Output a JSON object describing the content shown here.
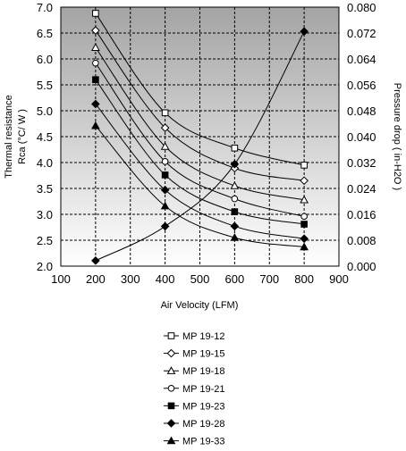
{
  "chart_data": {
    "type": "line",
    "x_axis": {
      "label": "Air Velocity (LFM)",
      "range": [
        100,
        900
      ],
      "ticks": [
        "100",
        "200",
        "300",
        "400",
        "500",
        "600",
        "700",
        "800",
        "900"
      ]
    },
    "y_axis_left": {
      "label_line1": "Thermal resistance",
      "label_line2": "Rca (°C/ W )",
      "range": [
        2.0,
        7.0
      ],
      "ticks": [
        "2.0",
        "2.5",
        "3.0",
        "3.5",
        "4.0",
        "4.5",
        "5.0",
        "5.5",
        "6.0",
        "6.5",
        "7.0"
      ]
    },
    "y_axis_right": {
      "label": "Pressure drop  ( in-H2O )",
      "range": [
        0.0,
        0.08
      ],
      "ticks": [
        "0.000",
        "0.008",
        "0.016",
        "0.024",
        "0.032",
        "0.040",
        "0.048",
        "0.056",
        "0.064",
        "0.072",
        "0.080"
      ]
    },
    "grid": true,
    "background": "gradient gray",
    "legend_position": "bottom",
    "series": [
      {
        "name": "MP 19-12",
        "axis": "left",
        "marker": "square-open",
        "points": [
          [
            200,
            6.88
          ],
          [
            400,
            4.96
          ],
          [
            600,
            4.28
          ],
          [
            800,
            3.95
          ]
        ]
      },
      {
        "name": "MP 19-15",
        "axis": "left",
        "marker": "diamond-open",
        "points": [
          [
            200,
            6.55
          ],
          [
            400,
            4.67
          ],
          [
            600,
            3.89
          ],
          [
            800,
            3.65
          ]
        ]
      },
      {
        "name": "MP 19-18",
        "axis": "left",
        "marker": "triangle-open",
        "points": [
          [
            200,
            6.22
          ],
          [
            400,
            4.31
          ],
          [
            600,
            3.55
          ],
          [
            800,
            3.28
          ]
        ]
      },
      {
        "name": "MP 19-21",
        "axis": "left",
        "marker": "circle-open",
        "points": [
          [
            200,
            5.92
          ],
          [
            400,
            4.02
          ],
          [
            600,
            3.3
          ],
          [
            800,
            2.96
          ]
        ]
      },
      {
        "name": "MP 19-23",
        "axis": "left",
        "marker": "square-filled",
        "points": [
          [
            200,
            5.6
          ],
          [
            400,
            3.76
          ],
          [
            600,
            3.05
          ],
          [
            800,
            2.81
          ]
        ]
      },
      {
        "name": "MP 19-28",
        "axis": "left",
        "marker": "diamond-filled",
        "points": [
          [
            200,
            5.13
          ],
          [
            400,
            3.47
          ],
          [
            600,
            2.77
          ],
          [
            800,
            2.53
          ]
        ]
      },
      {
        "name": "MP 19-33",
        "axis": "left",
        "marker": "triangle-filled",
        "points": [
          [
            200,
            4.71
          ],
          [
            400,
            3.16
          ],
          [
            600,
            2.55
          ],
          [
            800,
            2.37
          ]
        ]
      },
      {
        "axis": "right",
        "marker": "diamond-filled",
        "points": [
          [
            200,
            0.0017
          ],
          [
            400,
            0.0123
          ],
          [
            600,
            0.0315
          ],
          [
            800,
            0.0725
          ]
        ]
      }
    ]
  }
}
